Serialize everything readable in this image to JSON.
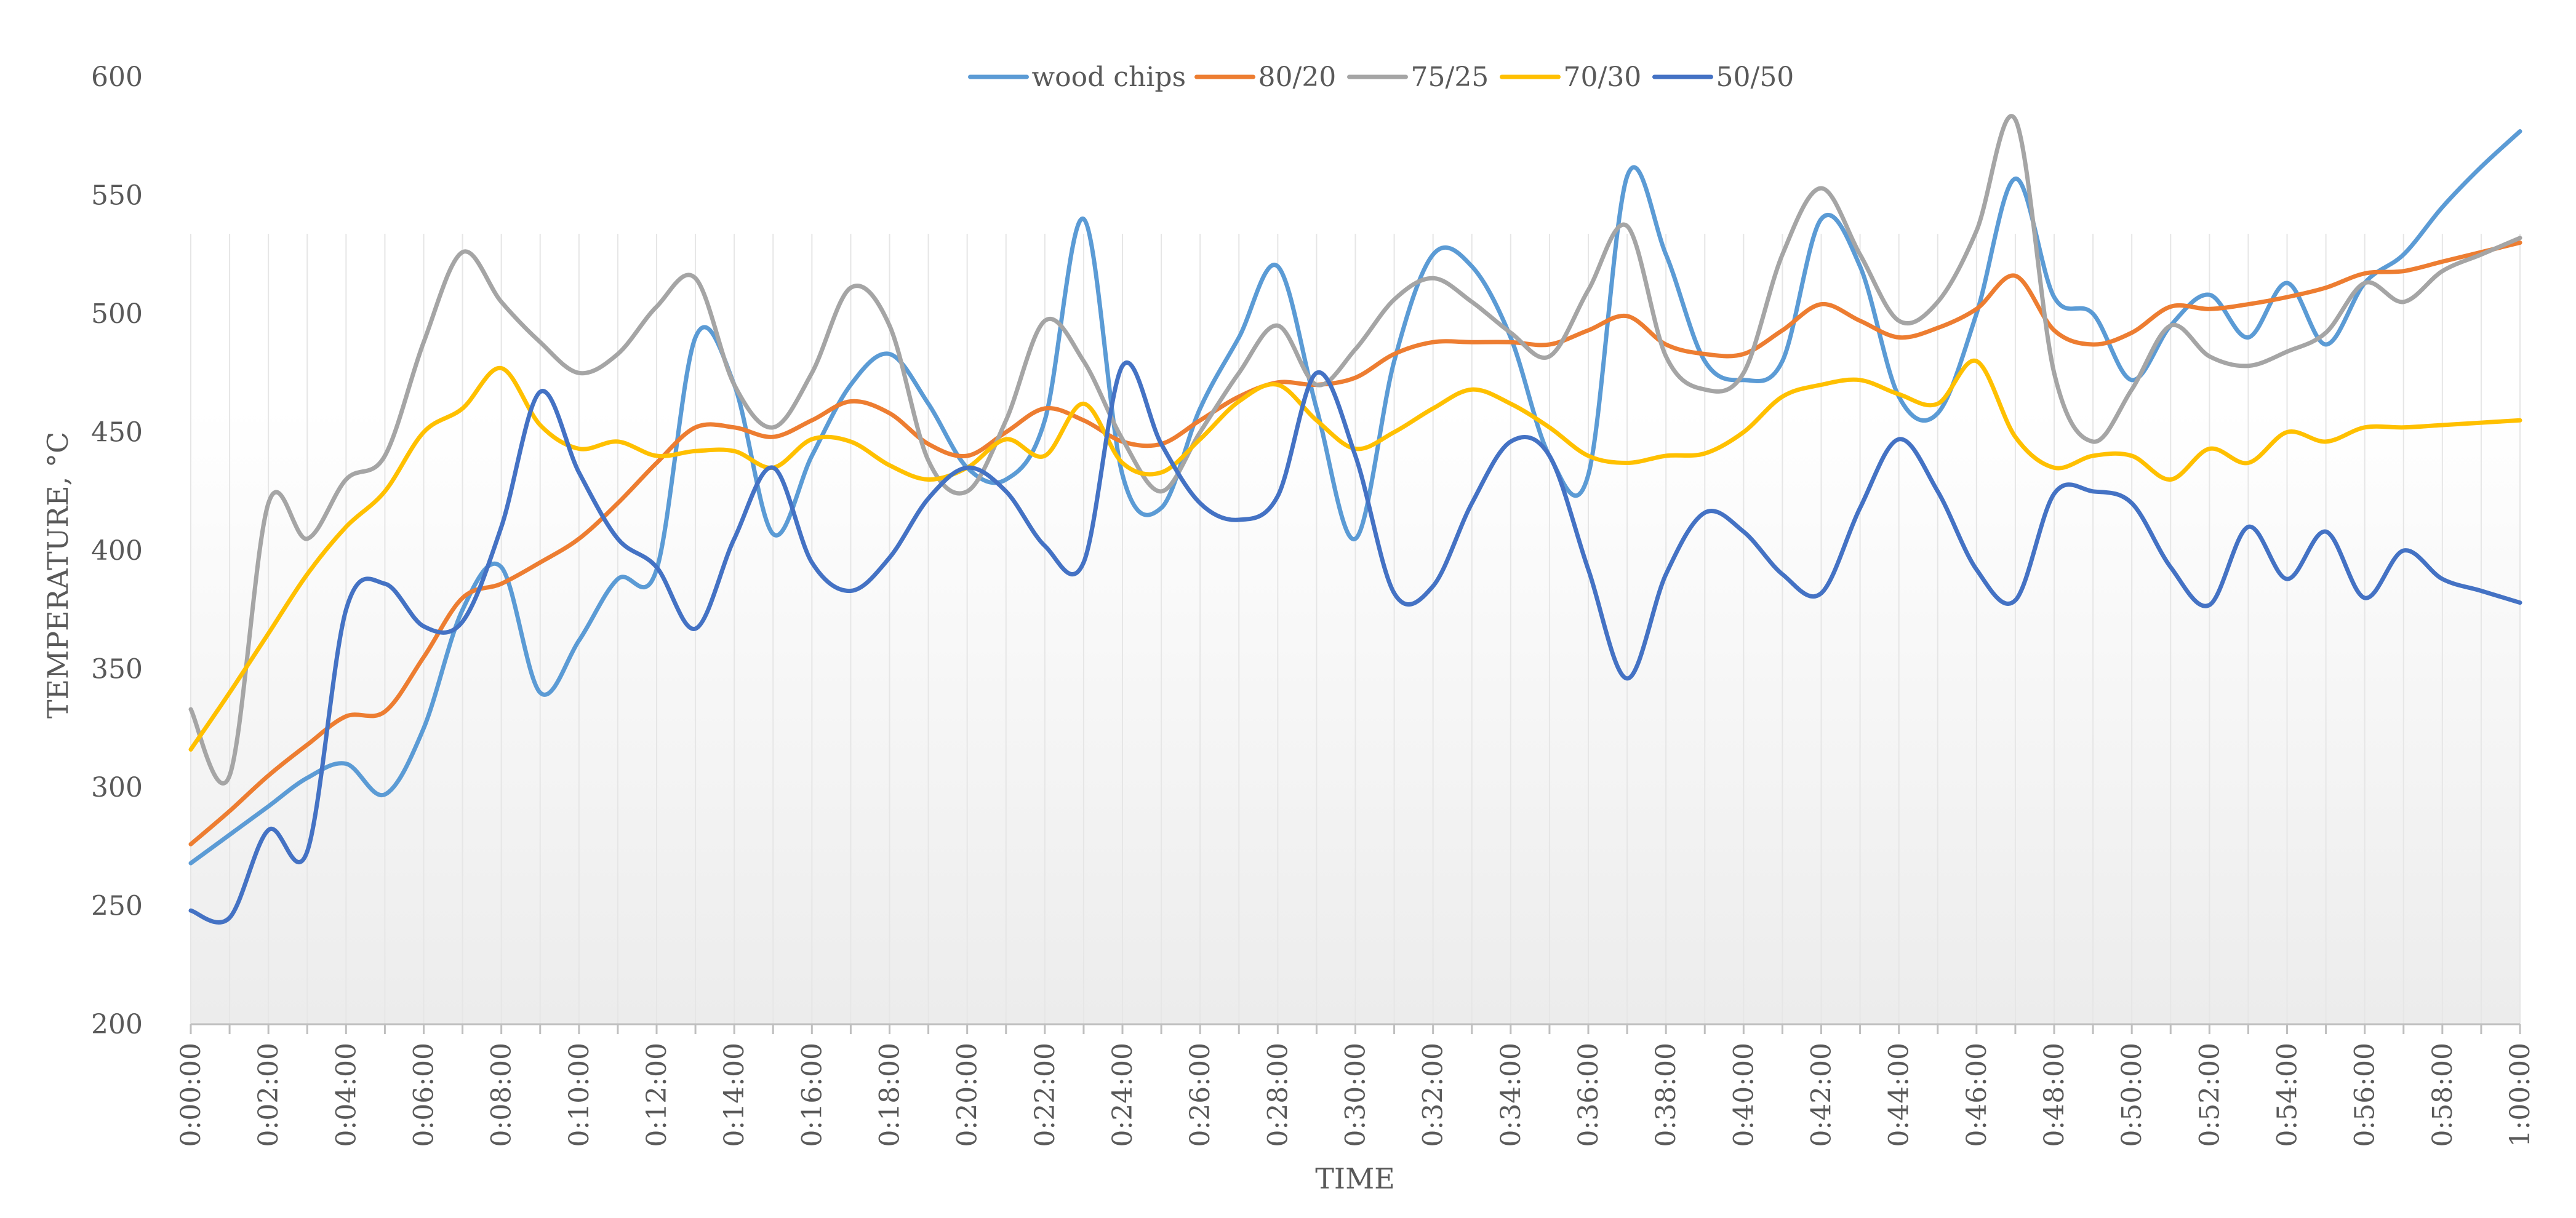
{
  "chart_data": {
    "type": "line",
    "title": "",
    "xlabel": "TIME",
    "ylabel": "TEMPERATURE, °C",
    "ylim": [
      200,
      600
    ],
    "yticks": [
      200,
      250,
      300,
      350,
      400,
      450,
      500,
      550,
      600
    ],
    "legend_position": "top-center",
    "x": [
      "0:00:00",
      "0:01:00",
      "0:02:00",
      "0:03:00",
      "0:04:00",
      "0:05:00",
      "0:06:00",
      "0:07:00",
      "0:08:00",
      "0:09:00",
      "0:10:00",
      "0:11:00",
      "0:12:00",
      "0:13:00",
      "0:14:00",
      "0:15:00",
      "0:16:00",
      "0:17:00",
      "0:18:00",
      "0:19:00",
      "0:20:00",
      "0:21:00",
      "0:22:00",
      "0:23:00",
      "0:24:00",
      "0:25:00",
      "0:26:00",
      "0:27:00",
      "0:28:00",
      "0:29:00",
      "0:30:00",
      "0:31:00",
      "0:32:00",
      "0:33:00",
      "0:34:00",
      "0:35:00",
      "0:36:00",
      "0:37:00",
      "0:38:00",
      "0:39:00",
      "0:40:00",
      "0:41:00",
      "0:42:00",
      "0:43:00",
      "0:44:00",
      "0:45:00",
      "0:46:00",
      "0:47:00",
      "0:48:00",
      "0:49:00",
      "0:50:00",
      "0:51:00",
      "0:52:00",
      "0:53:00",
      "0:54:00",
      "0:55:00",
      "0:56:00",
      "0:57:00",
      "0:58:00",
      "0:59:00",
      "1:00:00"
    ],
    "xtick_labels": [
      "0:00:00",
      "0:02:00",
      "0:04:00",
      "0:06:00",
      "0:08:00",
      "0:10:00",
      "0:12:00",
      "0:14:00",
      "0:16:00",
      "0:18:00",
      "0:20:00",
      "0:22:00",
      "0:24:00",
      "0:26:00",
      "0:28:00",
      "0:30:00",
      "0:32:00",
      "0:34:00",
      "0:36:00",
      "0:38:00",
      "0:40:00",
      "0:42:00",
      "0:44:00",
      "0:46:00",
      "0:48:00",
      "0:50:00",
      "0:52:00",
      "0:54:00",
      "0:56:00",
      "0:58:00",
      "1:00:00"
    ],
    "series": [
      {
        "name": "wood chips",
        "color": "#5B9BD5",
        "values": [
          268,
          280,
          292,
          304,
          310,
          297,
          325,
          375,
          393,
          340,
          362,
          388,
          392,
          490,
          470,
          407,
          440,
          470,
          483,
          462,
          435,
          430,
          455,
          540,
          432,
          418,
          460,
          490,
          520,
          460,
          405,
          480,
          525,
          520,
          490,
          440,
          432,
          558,
          525,
          480,
          472,
          480,
          540,
          520,
          465,
          458,
          500,
          557,
          507,
          500,
          472,
          495,
          508,
          490,
          513,
          487,
          513,
          525,
          545,
          562,
          577
        ]
      },
      {
        "name": "80/20",
        "color": "#ED7D31",
        "values": [
          276,
          290,
          305,
          318,
          330,
          332,
          355,
          380,
          386,
          395,
          405,
          420,
          437,
          452,
          452,
          448,
          455,
          463,
          458,
          445,
          440,
          450,
          460,
          455,
          446,
          445,
          455,
          465,
          471,
          470,
          473,
          483,
          488,
          488,
          488,
          487,
          493,
          499,
          487,
          483,
          483,
          493,
          504,
          497,
          490,
          494,
          502,
          516,
          493,
          487,
          492,
          503,
          502,
          504,
          507,
          511,
          517,
          518,
          522,
          526,
          530
        ]
      },
      {
        "name": "75/25",
        "color": "#A5A5A5",
        "values": [
          333,
          305,
          420,
          405,
          430,
          440,
          488,
          526,
          505,
          488,
          475,
          483,
          503,
          515,
          470,
          452,
          475,
          511,
          495,
          438,
          425,
          455,
          497,
          480,
          447,
          425,
          450,
          475,
          495,
          470,
          485,
          506,
          515,
          505,
          492,
          482,
          510,
          537,
          482,
          468,
          475,
          525,
          553,
          525,
          497,
          505,
          535,
          582,
          475,
          446,
          468,
          495,
          482,
          478,
          484,
          492,
          513,
          505,
          518,
          525,
          532
        ]
      },
      {
        "name": "70/30",
        "color": "#FFC000",
        "values": [
          316,
          340,
          365,
          390,
          410,
          425,
          450,
          460,
          477,
          453,
          443,
          446,
          440,
          442,
          442,
          435,
          447,
          446,
          436,
          430,
          435,
          447,
          440,
          462,
          437,
          433,
          447,
          463,
          470,
          455,
          443,
          450,
          460,
          468,
          462,
          452,
          440,
          437,
          440,
          441,
          450,
          465,
          470,
          472,
          466,
          462,
          480,
          448,
          435,
          440,
          440,
          430,
          443,
          437,
          450,
          446,
          452,
          452,
          453,
          454,
          455
        ]
      },
      {
        "name": "50/50",
        "color": "#4472C4",
        "values": [
          248,
          245,
          282,
          273,
          375,
          386,
          368,
          370,
          410,
          467,
          433,
          405,
          393,
          367,
          405,
          435,
          395,
          383,
          397,
          422,
          435,
          425,
          402,
          395,
          478,
          445,
          420,
          413,
          423,
          475,
          440,
          382,
          385,
          420,
          446,
          440,
          392,
          346,
          390,
          416,
          408,
          390,
          382,
          418,
          447,
          425,
          392,
          379,
          424,
          425,
          420,
          393,
          377,
          410,
          388,
          408,
          380,
          400,
          388,
          383,
          378
        ]
      }
    ]
  }
}
